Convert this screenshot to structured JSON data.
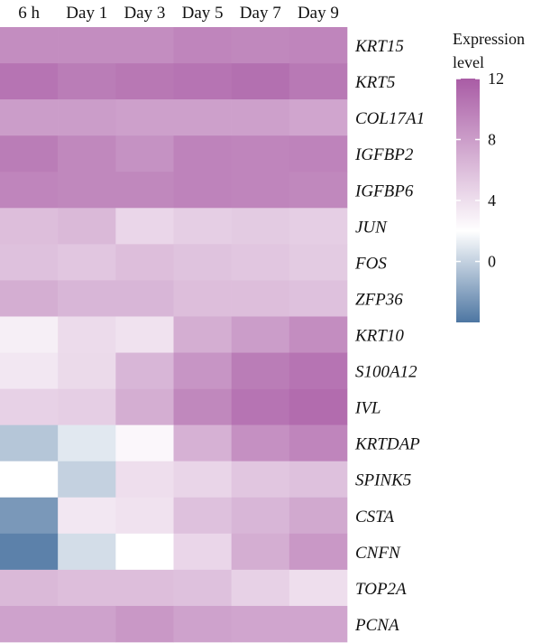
{
  "chart_data": {
    "type": "heatmap",
    "columns": [
      "6 h",
      "Day 1",
      "Day 3",
      "Day 5",
      "Day 7",
      "Day 9"
    ],
    "rows": [
      "KRT15",
      "KRT5",
      "COL17A1",
      "IGFBP2",
      "IGFBP6",
      "JUN",
      "FOS",
      "ZFP36",
      "KRT10",
      "S100A12",
      "IVL",
      "KRTDAP",
      "SPINK5",
      "CSTA",
      "CNFN",
      "TOP2A",
      "PCNA"
    ],
    "values": [
      [
        9.0,
        9.0,
        9.0,
        9.5,
        9.3,
        9.5
      ],
      [
        10.5,
        10.0,
        10.3,
        10.5,
        10.8,
        10.2
      ],
      [
        8.0,
        8.0,
        7.8,
        7.8,
        7.8,
        7.5
      ],
      [
        10.0,
        9.3,
        8.7,
        9.6,
        9.5,
        9.6
      ],
      [
        9.5,
        9.3,
        9.3,
        9.6,
        9.5,
        9.3
      ],
      [
        6.0,
        6.3,
        4.5,
        5.0,
        5.2,
        5.0
      ],
      [
        5.8,
        5.5,
        6.0,
        5.7,
        5.5,
        5.2
      ],
      [
        7.0,
        6.5,
        6.5,
        6.0,
        6.0,
        5.8
      ],
      [
        3.0,
        4.2,
        3.8,
        7.0,
        8.0,
        9.0
      ],
      [
        3.5,
        4.3,
        6.5,
        8.5,
        10.0,
        10.5
      ],
      [
        4.8,
        5.0,
        7.0,
        9.3,
        10.5,
        11.0
      ],
      [
        -0.5,
        1.0,
        2.5,
        6.8,
        8.8,
        9.5
      ],
      [
        2.0,
        0.0,
        4.0,
        4.6,
        5.5,
        5.8
      ],
      [
        -2.5,
        3.5,
        3.8,
        5.8,
        6.5,
        7.3
      ],
      [
        -3.5,
        0.5,
        2.0,
        4.5,
        7.0,
        8.3
      ],
      [
        6.3,
        6.0,
        6.0,
        5.8,
        4.8,
        4.0
      ],
      [
        7.7,
        7.7,
        8.3,
        7.7,
        7.5,
        7.5
      ]
    ],
    "colorscale": {
      "title": "Expression level",
      "title_lines": [
        "Expression",
        "level"
      ],
      "ticks": [
        0,
        4,
        8,
        12
      ],
      "range": [
        -4,
        12
      ],
      "stops": [
        {
          "value": -4,
          "color": "#4d76a2"
        },
        {
          "value": 2,
          "color": "#ffffff"
        },
        {
          "value": 12,
          "color": "#a95ca5"
        }
      ]
    }
  }
}
